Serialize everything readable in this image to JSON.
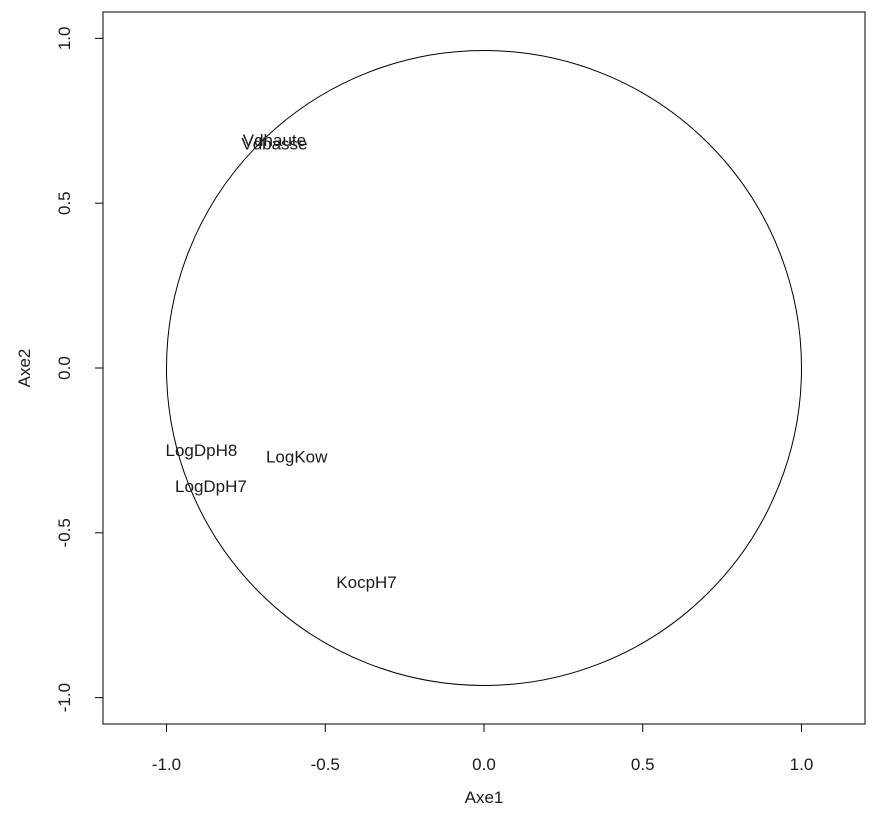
{
  "chart_data": {
    "type": "scatter",
    "title": "",
    "xlabel": "Axe1",
    "ylabel": "Axe2",
    "xlim": [
      -1.2,
      1.2
    ],
    "ylim": [
      -1.08,
      1.08
    ],
    "x_ticks": [
      -1.0,
      -0.5,
      0.0,
      0.5,
      1.0
    ],
    "y_ticks": [
      -1.0,
      -0.5,
      0.0,
      0.5,
      1.0
    ],
    "x_tick_labels": [
      "-1.0",
      "-0.5",
      "0.0",
      "0.5",
      "1.0"
    ],
    "y_tick_labels": [
      "-1.0",
      "-0.5",
      "0.0",
      "0.5",
      "1.0"
    ],
    "grid": false,
    "circle": {
      "center": [
        0,
        0
      ],
      "radius": 1
    },
    "points": [
      {
        "label": "Vdhaute",
        "x": -0.66,
        "y": 0.69
      },
      {
        "label": "Vdbasse",
        "x": -0.66,
        "y": 0.68
      },
      {
        "label": "LogDpH8",
        "x": -0.89,
        "y": -0.25
      },
      {
        "label": "LogKow",
        "x": -0.59,
        "y": -0.27
      },
      {
        "label": "LogDpH7",
        "x": -0.86,
        "y": -0.36
      },
      {
        "label": "KocpH7",
        "x": -0.37,
        "y": -0.65
      }
    ]
  }
}
